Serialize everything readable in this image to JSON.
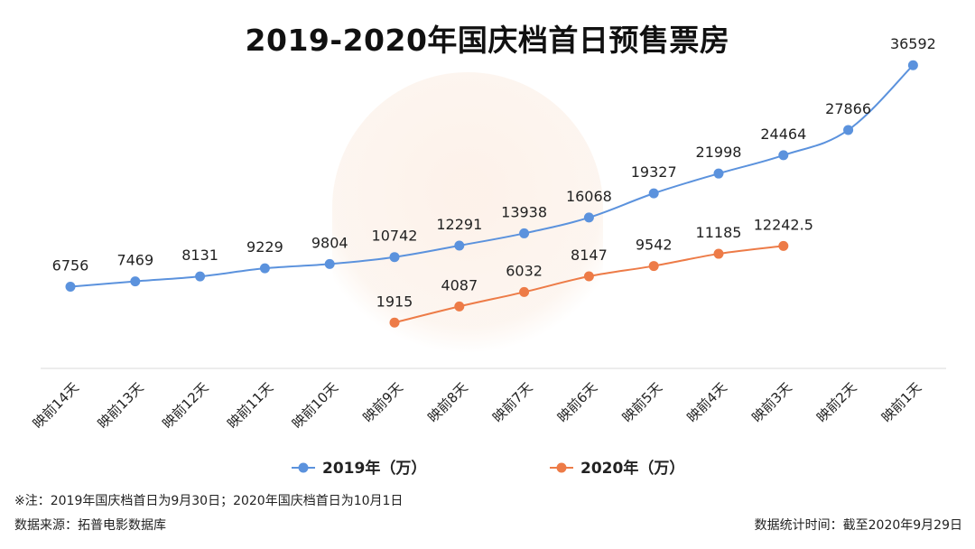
{
  "title": "2019-2020年国庆档首日预售票房",
  "footer": {
    "note": "※注：2019年国庆档首日为9月30日；2020年国庆档首日为10月1日",
    "source": "数据来源：拓普电影数据库",
    "stat_time": "数据统计时间：截至2020年9月29日"
  },
  "chart_data": {
    "type": "line",
    "title": "2019-2020年国庆档首日预售票房",
    "categories": [
      "映前14天",
      "映前13天",
      "映前12天",
      "映前11天",
      "映前10天",
      "映前9天",
      "映前8天",
      "映前7天",
      "映前6天",
      "映前5天",
      "映前4天",
      "映前3天",
      "映前2天",
      "映前1天"
    ],
    "series": [
      {
        "name": "2019年（万）",
        "color": "#5b92dd",
        "values": [
          6756,
          7469,
          8131,
          9229,
          9804,
          10742,
          12291,
          13938,
          16068,
          19327,
          21998,
          24464,
          27866,
          36592
        ],
        "labels": [
          "6756",
          "7469",
          "8131",
          "9229",
          "9804",
          "10742",
          "12291",
          "13938",
          "16068",
          "19327",
          "21998",
          "24464",
          "27866",
          "36592"
        ]
      },
      {
        "name": "2020年（万）",
        "color": "#ed7b47",
        "values": [
          null,
          null,
          null,
          null,
          null,
          1915,
          4087,
          6032,
          8147,
          9542,
          11185,
          12242.5,
          null,
          null
        ],
        "labels": [
          null,
          null,
          null,
          null,
          null,
          "1915",
          "4087",
          "6032",
          "8147",
          "9542",
          "11185",
          "12242.5",
          null,
          null
        ]
      }
    ],
    "legend_position": "bottom",
    "grid": false
  }
}
